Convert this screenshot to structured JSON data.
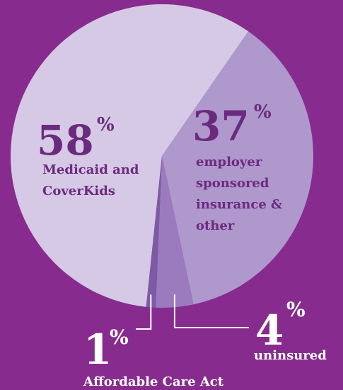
{
  "colors": {
    "background": "#872c8e",
    "text_dark": "#6c2a7e",
    "text_light": "#ffffff"
  },
  "chart_data": {
    "type": "pie",
    "title": "",
    "percent_symbol": "%",
    "slices": [
      {
        "value": 58,
        "display": "58",
        "label_lines": [
          "Medicaid and",
          "CoverKids"
        ],
        "color": "#d5c9e5"
      },
      {
        "value": 37,
        "display": "37",
        "label_lines": [
          "employer",
          "sponsored",
          "insurance &",
          "other"
        ],
        "color": "#ae98cc"
      },
      {
        "value": 4,
        "display": "4",
        "label_lines": [
          "uninsured"
        ],
        "color": "#9b7bbd"
      },
      {
        "value": 1,
        "display": "1",
        "label_lines": [
          "Affordable Care Act"
        ],
        "color": "#7d5aa5"
      }
    ]
  }
}
